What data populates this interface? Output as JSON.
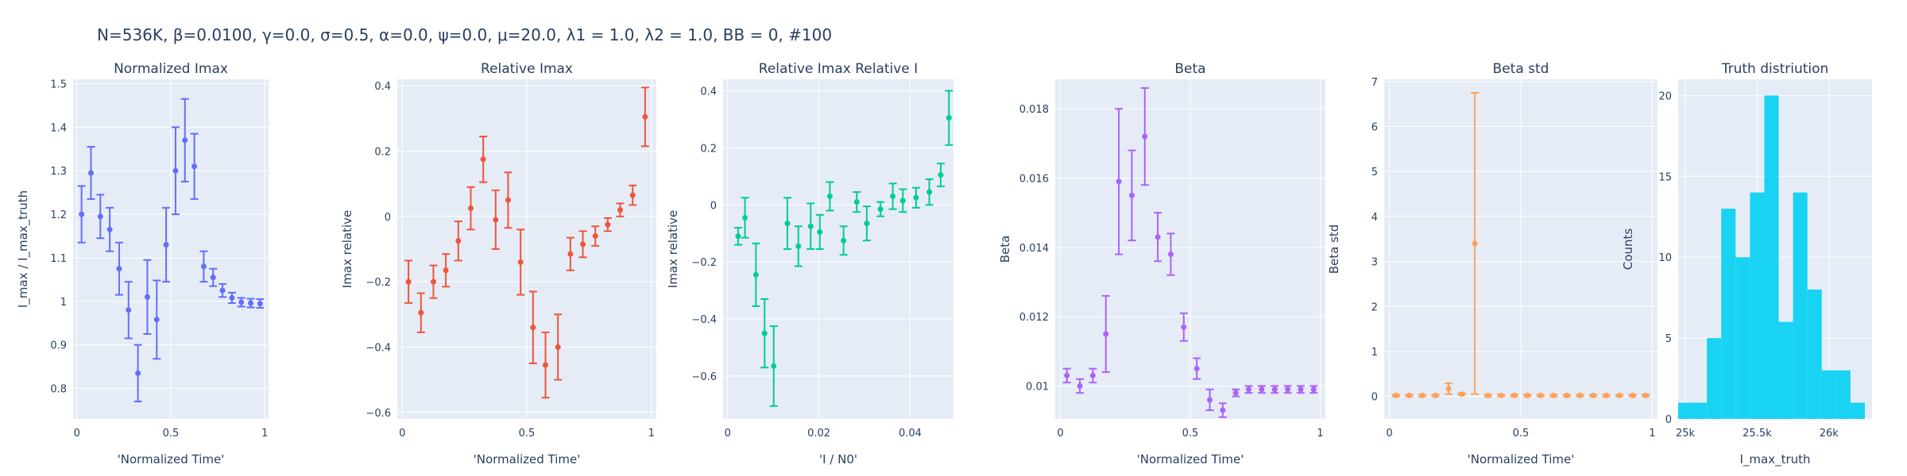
{
  "suptitle": "N=536K, β=0.0100, γ=0.0, σ=0.5,  α=0.0, ψ=0.0, μ=20.0, λ1 = 1.0, λ2 = 1.0, BB = 0, #100",
  "colors": {
    "plot_bg": "#E5ECF6",
    "grid": "#FFFFFF",
    "text": "#2a3f5f",
    "normalized_imax": "#636EFA",
    "relative_imax": "#EF553B",
    "relative_imax_relative_i": "#00CC96",
    "beta": "#AB63FA",
    "beta_std": "#FFA15A",
    "truth": "#19D3F3"
  },
  "chart_data": [
    {
      "type": "scatter",
      "title": "Normalized Imax",
      "xlabel": "'Normalized Time'",
      "ylabel": "I_max / I_max_truth",
      "xlim": [
        -0.02,
        1.02
      ],
      "ylim": [
        0.73,
        1.51
      ],
      "xticks": [
        0,
        0.5,
        1
      ],
      "xtick_labels": [
        "0",
        "0.5",
        "1"
      ],
      "yticks": [
        0.8,
        0.9,
        1.0,
        1.1,
        1.2,
        1.3,
        1.4,
        1.5
      ],
      "ytick_labels": [
        "0.8",
        "0.9",
        "1",
        "1.1",
        "1.2",
        "1.3",
        "1.4",
        "1.5"
      ],
      "grid": true,
      "color_key": "normalized_imax",
      "x": [
        0.025,
        0.075,
        0.125,
        0.175,
        0.225,
        0.275,
        0.325,
        0.375,
        0.425,
        0.475,
        0.525,
        0.575,
        0.625,
        0.675,
        0.725,
        0.775,
        0.825,
        0.875,
        0.925,
        0.975
      ],
      "y": [
        1.2,
        1.295,
        1.195,
        1.165,
        1.075,
        0.98,
        0.835,
        1.01,
        0.958,
        1.13,
        1.3,
        1.37,
        1.31,
        1.08,
        1.055,
        1.025,
        1.008,
        0.998,
        0.996,
        0.995
      ],
      "err": [
        0.065,
        0.06,
        0.05,
        0.05,
        0.06,
        0.065,
        0.065,
        0.085,
        0.09,
        0.085,
        0.1,
        0.095,
        0.075,
        0.035,
        0.02,
        0.015,
        0.012,
        0.01,
        0.01,
        0.01
      ]
    },
    {
      "type": "scatter",
      "title": "Relative Imax",
      "xlabel": "'Normalized Time'",
      "ylabel": "Imax relative",
      "xlim": [
        -0.02,
        1.02
      ],
      "ylim": [
        -0.62,
        0.42
      ],
      "xticks": [
        0,
        0.5,
        1
      ],
      "xtick_labels": [
        "0",
        "0.5",
        "1"
      ],
      "yticks": [
        -0.6,
        -0.4,
        -0.2,
        0,
        0.2,
        0.4
      ],
      "ytick_labels": [
        "−0.6",
        "−0.4",
        "−0.2",
        "0",
        "0.2",
        "0.4"
      ],
      "grid": true,
      "color_key": "relative_imax",
      "x": [
        0.025,
        0.075,
        0.125,
        0.175,
        0.225,
        0.275,
        0.325,
        0.375,
        0.425,
        0.475,
        0.525,
        0.575,
        0.625,
        0.675,
        0.725,
        0.775,
        0.825,
        0.875,
        0.925,
        0.975
      ],
      "y": [
        -0.2,
        -0.295,
        -0.2,
        -0.165,
        -0.075,
        0.025,
        0.175,
        -0.01,
        0.05,
        -0.14,
        -0.34,
        -0.455,
        -0.4,
        -0.115,
        -0.085,
        -0.06,
        -0.025,
        0.02,
        0.065,
        0.305
      ],
      "err": [
        0.065,
        0.06,
        0.05,
        0.05,
        0.06,
        0.065,
        0.07,
        0.09,
        0.085,
        0.1,
        0.11,
        0.1,
        0.1,
        0.05,
        0.04,
        0.03,
        0.02,
        0.02,
        0.03,
        0.09
      ]
    },
    {
      "type": "scatter",
      "title": "Relative Imax Relative I",
      "xlabel": "'I / N0'",
      "ylabel": "Imax relative",
      "xlim": [
        -0.001,
        0.0495
      ],
      "ylim": [
        -0.75,
        0.44
      ],
      "xticks": [
        0,
        0.02,
        0.04
      ],
      "xtick_labels": [
        "0",
        "0.02",
        "0.04"
      ],
      "yticks": [
        -0.6,
        -0.4,
        -0.2,
        0,
        0.2,
        0.4
      ],
      "ytick_labels": [
        "−0.6",
        "−0.4",
        "−0.2",
        "0",
        "0.2",
        "0.4"
      ],
      "grid": true,
      "color_key": "relative_imax_relative_i",
      "x": [
        0.0023,
        0.0038,
        0.0062,
        0.0081,
        0.0101,
        0.0131,
        0.0155,
        0.0182,
        0.0202,
        0.0224,
        0.0254,
        0.0283,
        0.0305,
        0.0335,
        0.0362,
        0.0384,
        0.0413,
        0.0442,
        0.0467,
        0.0485
      ],
      "y": [
        -0.11,
        -0.045,
        -0.245,
        -0.45,
        -0.565,
        -0.065,
        -0.145,
        -0.075,
        -0.095,
        0.03,
        -0.125,
        0.01,
        -0.065,
        -0.015,
        0.03,
        0.015,
        0.025,
        0.045,
        0.105,
        0.305
      ],
      "err": [
        0.03,
        0.07,
        0.11,
        0.12,
        0.14,
        0.09,
        0.07,
        0.08,
        0.06,
        0.05,
        0.05,
        0.035,
        0.06,
        0.025,
        0.045,
        0.04,
        0.035,
        0.045,
        0.04,
        0.095
      ]
    },
    {
      "type": "scatter",
      "title": "Beta",
      "xlabel": "'Normalized Time'",
      "ylabel": "Beta",
      "xlim": [
        -0.02,
        1.02
      ],
      "ylim": [
        0.00905,
        0.01885
      ],
      "xticks": [
        0,
        0.5,
        1
      ],
      "xtick_labels": [
        "0",
        "0.5",
        "1"
      ],
      "yticks": [
        0.01,
        0.012,
        0.014,
        0.016,
        0.018
      ],
      "ytick_labels": [
        "0.01",
        "0.012",
        "0.014",
        "0.016",
        "0.018"
      ],
      "grid": true,
      "color_key": "beta",
      "x": [
        0.025,
        0.075,
        0.125,
        0.175,
        0.225,
        0.275,
        0.325,
        0.375,
        0.425,
        0.475,
        0.525,
        0.575,
        0.625,
        0.675,
        0.725,
        0.775,
        0.825,
        0.875,
        0.925,
        0.975
      ],
      "y": [
        0.0103,
        0.01,
        0.0103,
        0.0115,
        0.0159,
        0.0155,
        0.0172,
        0.0143,
        0.0138,
        0.0117,
        0.0105,
        0.0096,
        0.0093,
        0.0098,
        0.0099,
        0.0099,
        0.0099,
        0.0099,
        0.0099,
        0.0099
      ],
      "err": [
        0.0002,
        0.0002,
        0.0002,
        0.0011,
        0.0021,
        0.0013,
        0.0014,
        0.0007,
        0.0006,
        0.0004,
        0.0003,
        0.0003,
        0.0002,
        0.0001,
        0.0001,
        0.0001,
        0.0001,
        0.0001,
        0.0001,
        0.0001
      ]
    },
    {
      "type": "scatter",
      "title": "Beta std",
      "xlabel": "'Normalized Time'",
      "ylabel": "Beta std",
      "xlim": [
        -0.02,
        1.02
      ],
      "ylim": [
        -0.5,
        7.05
      ],
      "xticks": [
        0,
        0.5,
        1
      ],
      "xtick_labels": [
        "0",
        "0.5",
        "1"
      ],
      "yticks": [
        0,
        1,
        2,
        3,
        4,
        5,
        6,
        7
      ],
      "ytick_labels": [
        "0",
        "1",
        "2",
        "3",
        "4",
        "5",
        "6",
        "7"
      ],
      "grid": true,
      "color_key": "beta_std",
      "x": [
        0.025,
        0.075,
        0.125,
        0.175,
        0.225,
        0.275,
        0.325,
        0.375,
        0.425,
        0.475,
        0.525,
        0.575,
        0.625,
        0.675,
        0.725,
        0.775,
        0.825,
        0.875,
        0.925,
        0.975
      ],
      "y": [
        0.02,
        0.02,
        0.02,
        0.02,
        0.17,
        0.05,
        3.4,
        0.02,
        0.02,
        0.02,
        0.02,
        0.02,
        0.02,
        0.02,
        0.02,
        0.02,
        0.02,
        0.02,
        0.02,
        0.02
      ],
      "err": [
        0.02,
        0.02,
        0.02,
        0.02,
        0.12,
        0.02,
        3.35,
        0.02,
        0.02,
        0.02,
        0.02,
        0.02,
        0.02,
        0.02,
        0.02,
        0.02,
        0.02,
        0.02,
        0.02,
        0.02
      ]
    },
    {
      "type": "bar",
      "title": "Truth distriution",
      "xlabel": "I_max_truth",
      "ylabel": "Counts",
      "xlim": [
        24950,
        26300
      ],
      "ylim": [
        0,
        21
      ],
      "xticks": [
        25000,
        25500,
        26000
      ],
      "xtick_labels": [
        "25k",
        "25.5k",
        "26k"
      ],
      "yticks": [
        0,
        5,
        10,
        15,
        20
      ],
      "ytick_labels": [
        "0",
        "5",
        "10",
        "15",
        "20"
      ],
      "grid": true,
      "color_key": "truth",
      "bin_edges": [
        24950,
        25050,
        25150,
        25250,
        25350,
        25450,
        25550,
        25650,
        25750,
        25850,
        25950,
        26050,
        26150,
        26250
      ],
      "counts": [
        1,
        1,
        5,
        13,
        10,
        14,
        20,
        6,
        14,
        8,
        3,
        3,
        1,
        1
      ]
    }
  ]
}
